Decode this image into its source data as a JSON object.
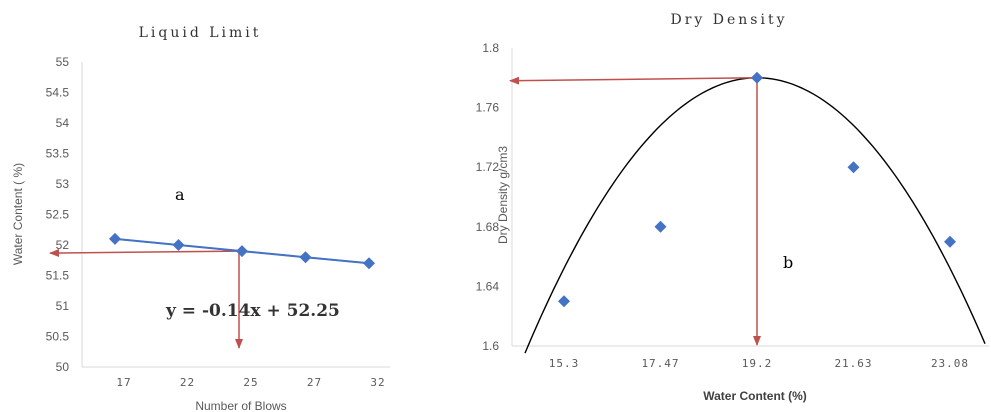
{
  "chart_data": [
    {
      "type": "scatter",
      "title": "Liquid Limit",
      "xlabel": "Number of Blows",
      "ylabel": "Water Content ( %)",
      "categories": [
        "17",
        "22",
        "25",
        "27",
        "32"
      ],
      "ylim": [
        50,
        55
      ],
      "yticks": [
        "50",
        "50.5",
        "51",
        "51.5",
        "52",
        "52.5",
        "53",
        "53.5",
        "54",
        "54.5",
        "55"
      ],
      "series": [
        {
          "values": [
            52.1,
            52.0,
            51.9,
            51.8,
            51.7
          ]
        }
      ],
      "trendline": {
        "equation": "y = -0.14x + 52.25",
        "color": "#4a7ebb"
      },
      "annotation": "a",
      "color": "#4472c4",
      "arrow_color": "#c0504d",
      "grid": false
    },
    {
      "type": "scatter",
      "title": "Dry Density",
      "xlabel": "Water Content (%)",
      "ylabel": "Dry Density g/cm3",
      "categories": [
        "15.3",
        "17.47",
        "19.2",
        "21.63",
        "23.08"
      ],
      "ylim": [
        1.6,
        1.8
      ],
      "yticks": [
        "1.6",
        "1.64",
        "1.68",
        "1.72",
        "1.76",
        "1.8"
      ],
      "series": [
        {
          "values": [
            1.63,
            1.68,
            1.78,
            1.72,
            1.67
          ]
        }
      ],
      "annotation": "b",
      "color": "#4472c4",
      "curve_color": "#000000",
      "arrow_color": "#c0504d",
      "grid": false
    }
  ]
}
